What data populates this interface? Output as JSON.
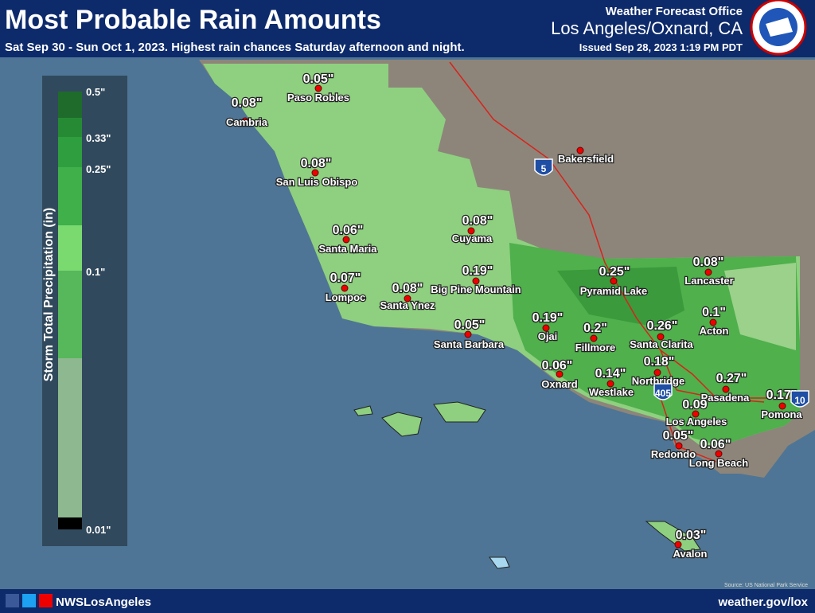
{
  "header": {
    "title": "Most Probable Rain Amounts",
    "subtitle": "Sat Sep 30 - Sun Oct 1, 2023.  Highest rain chances Saturday afternoon and night.",
    "office": "Weather Forecast Office",
    "location": "Los Angeles/Oxnard, CA",
    "issued": "Issued Sep 28, 2023 1:19 PM PDT"
  },
  "legend": {
    "title": "Storm Total Precipitation (in)",
    "labels": [
      "0.5\"",
      "0.33\"",
      "0.25\"",
      "0.1\"",
      "0.01\""
    ]
  },
  "places": [
    {
      "name": "Paso Robles",
      "amount": "0.05\""
    },
    {
      "name": "Cambria",
      "amount": "0.08\""
    },
    {
      "name": "San Luis Obispo",
      "amount": "0.08\""
    },
    {
      "name": "Cuyama",
      "amount": "0.08\""
    },
    {
      "name": "Santa Maria",
      "amount": "0.06\""
    },
    {
      "name": "Big Pine Mountain",
      "amount": "0.19\""
    },
    {
      "name": "Lompoc",
      "amount": "0.07\""
    },
    {
      "name": "Santa Ynez",
      "amount": "0.08\""
    },
    {
      "name": "Santa Barbara",
      "amount": "0.05\""
    },
    {
      "name": "Pyramid Lake",
      "amount": "0.25\""
    },
    {
      "name": "Lancaster",
      "amount": "0.08\""
    },
    {
      "name": "Acton",
      "amount": "0.1\""
    },
    {
      "name": "Ojai",
      "amount": "0.19\""
    },
    {
      "name": "Fillmore",
      "amount": "0.2\""
    },
    {
      "name": "Santa Clarita",
      "amount": "0.26\""
    },
    {
      "name": "Northridge",
      "amount": "0.18\""
    },
    {
      "name": "Oxnard",
      "amount": "0.06\""
    },
    {
      "name": "Westlake",
      "amount": "0.14\""
    },
    {
      "name": "Pasadena",
      "amount": "0.27\""
    },
    {
      "name": "Pomona",
      "amount": "0.17\""
    },
    {
      "name": "Los Angeles",
      "amount": "0.09"
    },
    {
      "name": "Redondo",
      "amount": "0.05\""
    },
    {
      "name": "Long Beach",
      "amount": "0.06\""
    },
    {
      "name": "Avalon",
      "amount": "0.03\""
    },
    {
      "name": "Bakersfield"
    }
  ],
  "highways": [
    "5",
    "405",
    "10"
  ],
  "source": "Source: US National Park Service",
  "footer": {
    "handle": "NWSLosAngeles",
    "url": "weather.gov/lox"
  }
}
